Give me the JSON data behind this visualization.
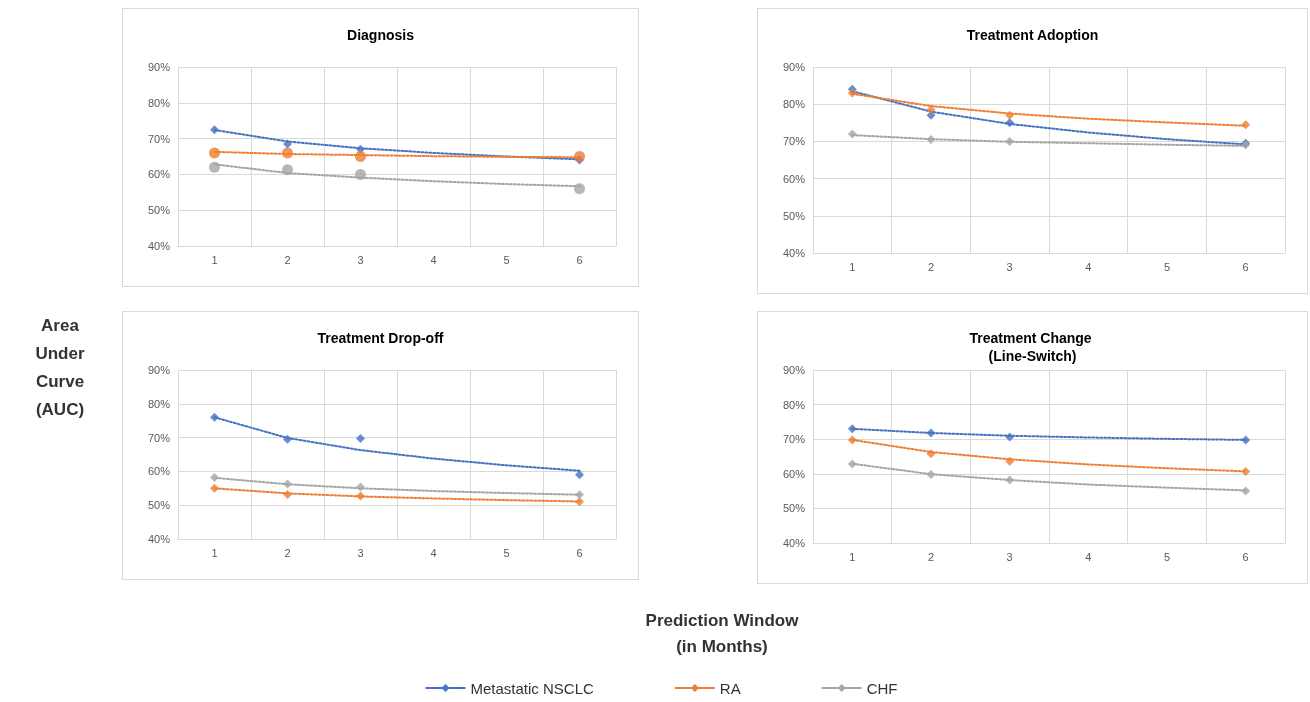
{
  "chart_data": [
    {
      "type": "scatter",
      "title": "Diagnosis",
      "legend": "bottom",
      "categories": [
        "1",
        "2",
        "3",
        "4",
        "5",
        "6"
      ],
      "ylim": [
        40,
        90
      ],
      "yticks": [
        {
          "value": 40,
          "label": "40%"
        },
        {
          "value": 50,
          "label": "50%"
        },
        {
          "value": 60,
          "label": "60%"
        },
        {
          "value": 70,
          "label": "70%"
        },
        {
          "value": 80,
          "label": "80%"
        },
        {
          "value": 90,
          "label": "90%"
        }
      ],
      "grid": true,
      "marker": "diamond",
      "series": [
        {
          "name": "Metastatic NSCLC",
          "color": "#4472c4",
          "values": [
            72.5,
            68.5,
            67,
            null,
            null,
            64
          ]
        },
        {
          "name": "RA",
          "color": "#ed7d31",
          "marker": "circle",
          "values": [
            66,
            66,
            65,
            null,
            null,
            65
          ]
        },
        {
          "name": "CHF",
          "color": "#a5a5a5",
          "marker": "circle",
          "values": [
            62,
            61.3,
            60,
            null,
            null,
            56
          ]
        },
        {
          "type": "line",
          "color": "#4472c4",
          "marker": "none",
          "line_style": "dotted",
          "values": [
            72.4,
            69.2,
            67.3,
            66.0,
            65.0,
            64.2
          ]
        },
        {
          "type": "line",
          "color": "#ed7d31",
          "marker": "none",
          "line_style": "dotted",
          "values": [
            66.3,
            65.7,
            65.4,
            65.1,
            64.9,
            64.8
          ]
        },
        {
          "type": "line",
          "color": "#a5a5a5",
          "marker": "none",
          "line_style": "dotted",
          "values": [
            62.8,
            60.4,
            59.1,
            58.1,
            57.3,
            56.7
          ]
        }
      ]
    },
    {
      "type": "scatter",
      "title": "Treatment Adoption",
      "categories": [
        "1",
        "2",
        "3",
        "4",
        "5",
        "6"
      ],
      "ylim": [
        40,
        90
      ],
      "yticks": [
        {
          "value": 40,
          "label": "40%"
        },
        {
          "value": 50,
          "label": "50%"
        },
        {
          "value": 60,
          "label": "60%"
        },
        {
          "value": 70,
          "label": "70%"
        },
        {
          "value": 80,
          "label": "80%"
        },
        {
          "value": 90,
          "label": "90%"
        }
      ],
      "grid": true,
      "marker": "diamond",
      "series": [
        {
          "color": "#4472c4",
          "values": [
            84,
            77,
            75,
            null,
            null,
            69.5
          ]
        },
        {
          "color": "#ed7d31",
          "values": [
            83,
            78.5,
            77,
            null,
            null,
            74.5
          ]
        },
        {
          "color": "#a5a5a5",
          "values": [
            72,
            70.5,
            70,
            null,
            null,
            69
          ]
        },
        {
          "type": "line",
          "color": "#4472c4",
          "marker": "none",
          "line_style": "dotted",
          "values": [
            83.5,
            78,
            74.7,
            72.4,
            70.6,
            69.2
          ]
        },
        {
          "type": "line",
          "color": "#ed7d31",
          "marker": "none",
          "line_style": "dotted",
          "values": [
            82.8,
            79.5,
            77.5,
            76.1,
            75.1,
            74.2
          ]
        },
        {
          "type": "line",
          "color": "#a5a5a5",
          "marker": "none",
          "line_style": "dotted",
          "values": [
            71.7,
            70.6,
            69.9,
            69.5,
            69.1,
            68.8
          ]
        }
      ]
    },
    {
      "type": "scatter",
      "title": "Treatment Drop-off",
      "ylabel": "Area Under Curve (AUC)",
      "xlabel": "Prediction Window (in Months)",
      "categories": [
        "1",
        "2",
        "3",
        "4",
        "5",
        "6"
      ],
      "ylim": [
        40,
        90
      ],
      "yticks": [
        {
          "value": 40,
          "label": "40%"
        },
        {
          "value": 50,
          "label": "50%"
        },
        {
          "value": 60,
          "label": "60%"
        },
        {
          "value": 70,
          "label": "70%"
        },
        {
          "value": 80,
          "label": "80%"
        },
        {
          "value": 90,
          "label": "90%"
        }
      ],
      "grid": true,
      "marker": "diamond",
      "series": [
        {
          "color": "#4472c4",
          "values": [
            76,
            69.5,
            69.7,
            null,
            null,
            59
          ]
        },
        {
          "color": "#ed7d31",
          "values": [
            55,
            53.2,
            52.7,
            null,
            null,
            51
          ]
        },
        {
          "color": "#a5a5a5",
          "values": [
            58.2,
            56.3,
            55.4,
            null,
            null,
            53.1
          ]
        },
        {
          "type": "line",
          "color": "#4472c4",
          "marker": "none",
          "line_style": "dotted",
          "values": [
            76,
            69.9,
            66.3,
            63.8,
            61.8,
            60.2
          ]
        },
        {
          "type": "line",
          "color": "#ed7d31",
          "marker": "none",
          "line_style": "dotted",
          "values": [
            55,
            53.5,
            52.6,
            52,
            51.5,
            51.1
          ]
        },
        {
          "type": "line",
          "color": "#a5a5a5",
          "marker": "none",
          "line_style": "dotted",
          "values": [
            58.1,
            56.2,
            55,
            54.2,
            53.6,
            53.1
          ]
        }
      ]
    },
    {
      "type": "scatter",
      "title": "Treatment Change (Line-Switch)",
      "categories": [
        "1",
        "2",
        "3",
        "4",
        "5",
        "6"
      ],
      "ylim": [
        40,
        90
      ],
      "yticks": [
        {
          "value": 40,
          "label": "40%"
        },
        {
          "value": 50,
          "label": "50%"
        },
        {
          "value": 60,
          "label": "60%"
        },
        {
          "value": 70,
          "label": "70%"
        },
        {
          "value": 80,
          "label": "80%"
        },
        {
          "value": 90,
          "label": "90%"
        }
      ],
      "grid": true,
      "marker": "diamond",
      "series": [
        {
          "color": "#4472c4",
          "values": [
            73,
            71.8,
            70.6,
            null,
            null,
            69.8
          ]
        },
        {
          "color": "#ed7d31",
          "values": [
            69.8,
            65.8,
            63.6,
            null,
            null,
            60.7
          ]
        },
        {
          "color": "#a5a5a5",
          "values": [
            62.8,
            59.8,
            58.2,
            null,
            null,
            55
          ]
        },
        {
          "type": "line",
          "color": "#4472c4",
          "marker": "none",
          "line_style": "dotted",
          "values": [
            73,
            71.8,
            71,
            70.5,
            70.1,
            69.8
          ]
        },
        {
          "type": "line",
          "color": "#ed7d31",
          "marker": "none",
          "line_style": "dotted",
          "values": [
            69.8,
            66.3,
            64.2,
            62.7,
            61.6,
            60.7
          ]
        },
        {
          "type": "line",
          "color": "#a5a5a5",
          "marker": "none",
          "line_style": "dotted",
          "values": [
            62.9,
            59.9,
            58.2,
            56.9,
            56,
            55.2
          ]
        }
      ]
    }
  ]
}
